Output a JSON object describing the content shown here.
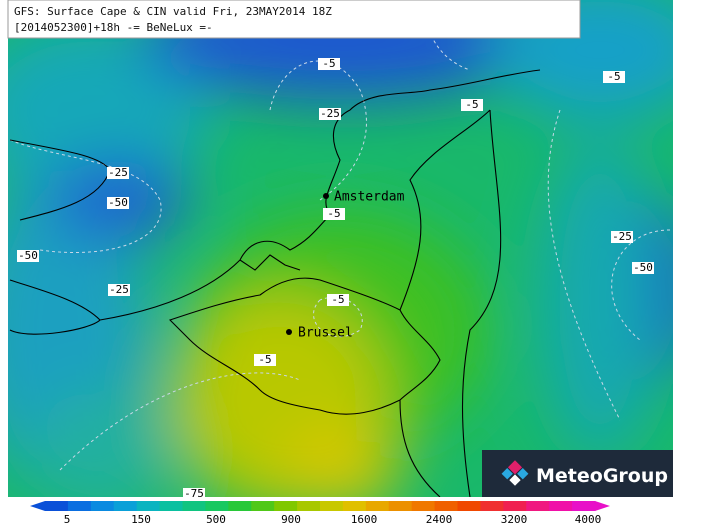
{
  "header": {
    "line1": "GFS: Surface Cape & CIN valid Fri, 23MAY2014 18Z",
    "line2": "[2014052300]+18h -= BeNeLux =-"
  },
  "contour_labels": [
    "-5",
    "-25",
    "-5",
    "-5",
    "-25",
    "-50",
    "-5",
    "-50",
    "-25",
    "-5",
    "-5",
    "-25",
    "-50",
    "-75"
  ],
  "cities": [
    "Amsterdam",
    "Brussel"
  ],
  "logo": "MeteoGroup",
  "colorbar_ticks": [
    "5",
    "150",
    "500",
    "900",
    "1600",
    "2400",
    "3200",
    "4000"
  ]
}
